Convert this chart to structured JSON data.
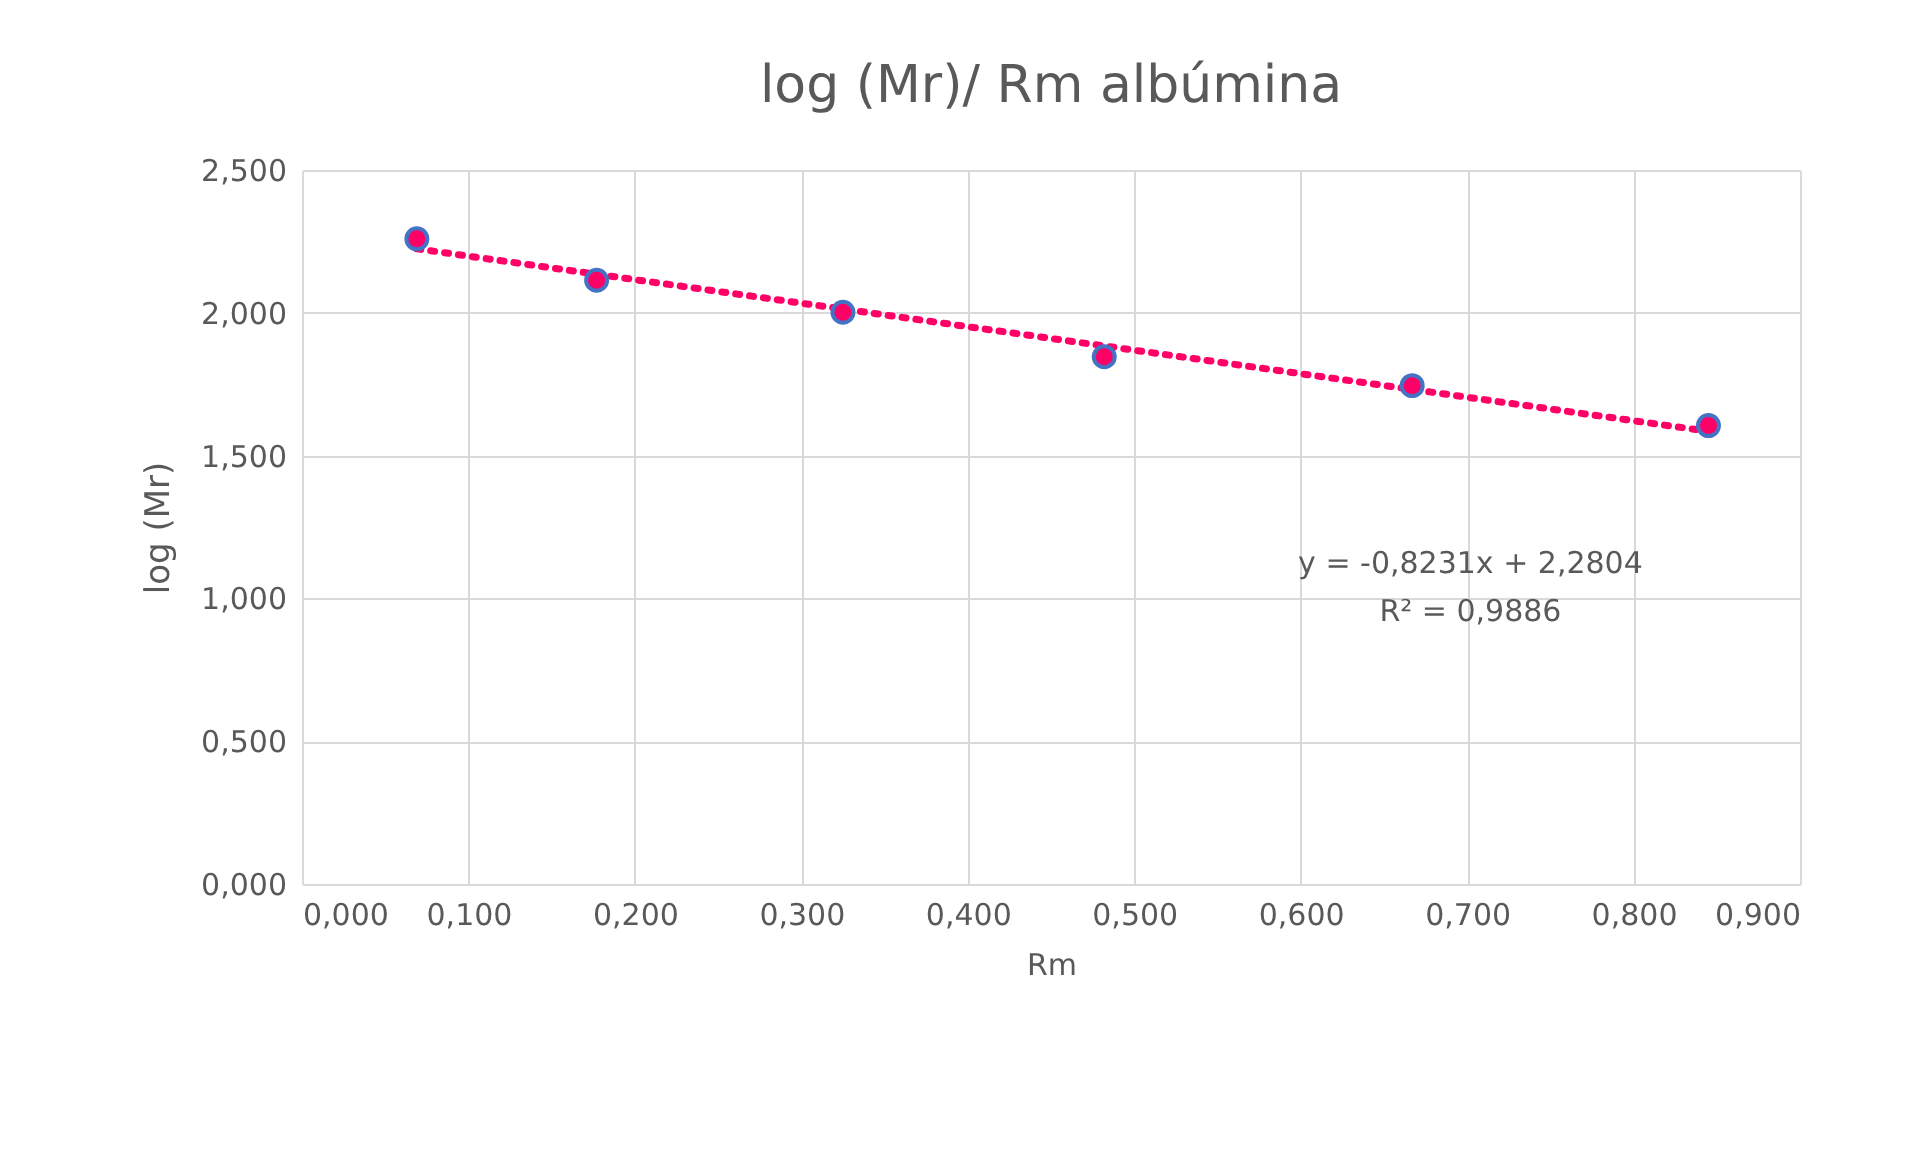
{
  "chart_data": {
    "type": "scatter",
    "title": "log (Mr)/ Rm albúmina",
    "xlabel": "Rm",
    "ylabel": "log (Mr)",
    "x": [
      0.069,
      0.177,
      0.325,
      0.482,
      0.667,
      0.845
    ],
    "series": [
      {
        "color": "#ff0066",
        "values": [
          2.259,
          2.114,
          2.002,
          1.846,
          1.745,
          1.605
        ],
        "marker": "circle"
      },
      {
        "type": "line",
        "color": "#ff0066",
        "x": [
          0.069,
          0.845
        ],
        "values": [
          2.224,
          1.585
        ],
        "line_style": "dotted"
      }
    ],
    "annotations": [
      "y = -0,8231x  + 2,2804",
      "R² = 0,9886"
    ],
    "xlim": [
      0,
      0.9
    ],
    "xticks": [
      {
        "value": 0,
        "label": "0,000"
      },
      {
        "value": 0.1,
        "label": "0,100"
      },
      {
        "value": 0.2,
        "label": "0,200"
      },
      {
        "value": 0.3,
        "label": "0,300"
      },
      {
        "value": 0.4,
        "label": "0,400"
      },
      {
        "value": 0.5,
        "label": "0,500"
      },
      {
        "value": 0.6,
        "label": "0,600"
      },
      {
        "value": 0.7,
        "label": "0,700"
      },
      {
        "value": 0.8,
        "label": "0,800"
      },
      {
        "value": 0.9,
        "label": "0,900"
      }
    ],
    "ylim": [
      0,
      2.5
    ],
    "yticks": [
      {
        "value": 0,
        "label": "0,000"
      },
      {
        "value": 0.5,
        "label": "0,500"
      },
      {
        "value": 1,
        "label": "1,000"
      },
      {
        "value": 1.5,
        "label": "1,500"
      },
      {
        "value": 2,
        "label": "2,000"
      },
      {
        "value": 2.5,
        "label": "2,500"
      }
    ],
    "grid": true
  }
}
